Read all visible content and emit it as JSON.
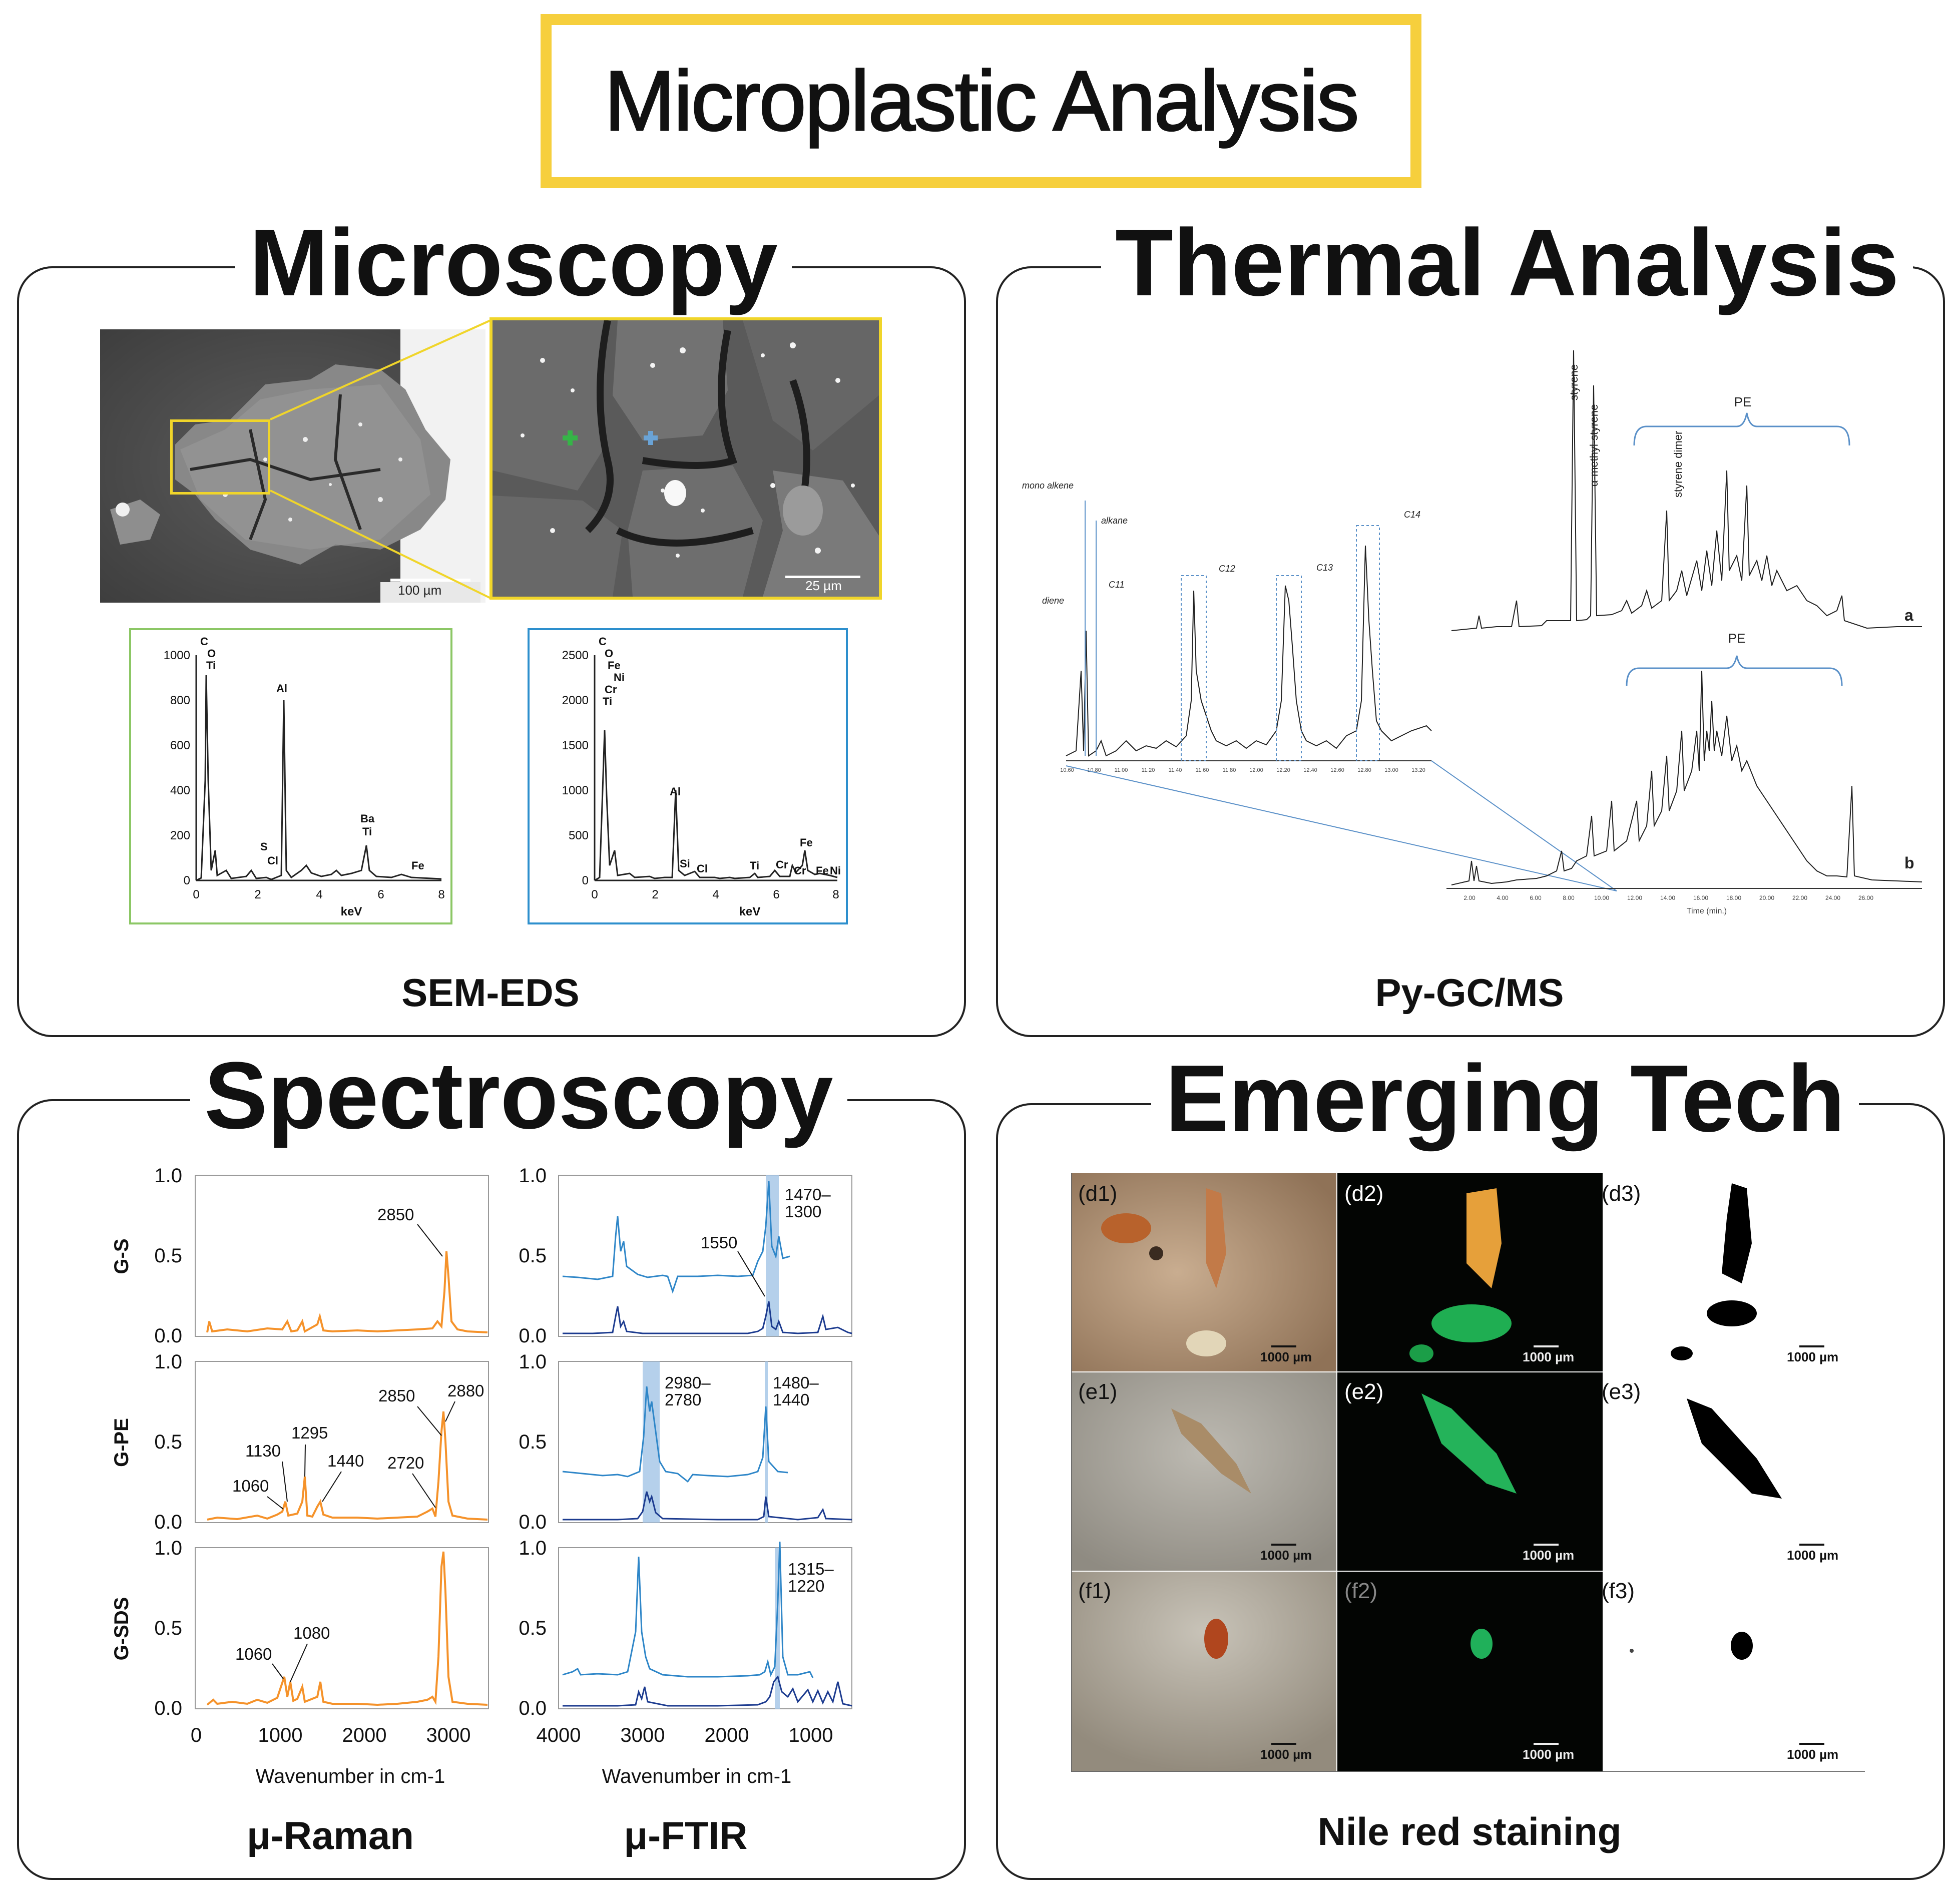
{
  "title": "Microplastic Analysis",
  "colors": {
    "accent_yellow": "#f6cf3d",
    "raman_orange": "#f5922a",
    "ftir_light": "#2e86c8",
    "ftir_dark": "#1c3b8f",
    "band": "#a8c8e8",
    "eds_green": "#8cc765",
    "eds_blue": "#2d8fcd"
  },
  "panels": {
    "microscopy": {
      "heading": "Microscopy",
      "caption": "SEM-EDS",
      "scale_left": "100 µm",
      "scale_right": "25 µm",
      "eds_left": {
        "y_ticks": [
          "0",
          "200",
          "400",
          "600",
          "800",
          "1000"
        ],
        "x_ticks": [
          "0",
          "2",
          "4",
          "6",
          "8"
        ],
        "x_label": "keV",
        "element_stack": [
          "C",
          "O",
          "Ti"
        ],
        "labels": [
          "Al",
          "S",
          "Cl",
          "Ba",
          "Ti",
          "Fe"
        ]
      },
      "eds_right": {
        "y_ticks": [
          "0",
          "500",
          "1000",
          "1500",
          "2000",
          "2500"
        ],
        "x_ticks": [
          "0",
          "2",
          "4",
          "6",
          "8"
        ],
        "x_label": "keV",
        "element_stack": [
          "C",
          "O",
          "Fe",
          "Ni",
          "Cr",
          "Ti"
        ],
        "labels": [
          "Al",
          "Si",
          "Cl",
          "Ti",
          "Cr",
          "Cr",
          "Fe",
          "Fe",
          "Ni"
        ]
      }
    },
    "thermal": {
      "heading": "Thermal Analysis",
      "caption": "Py-GC/MS",
      "zoom_labels": [
        "mono alkene",
        "alkane",
        "diene",
        "C11",
        "C12",
        "C13",
        "C14"
      ],
      "zoom_ticks": [
        "10.60",
        "10.80",
        "11.00",
        "11.20",
        "11.40",
        "11.60",
        "11.80",
        "12.00",
        "12.20",
        "12.40",
        "12.60",
        "12.80",
        "13.00",
        "13.20"
      ],
      "trace_a": {
        "label": "a",
        "peak_labels": [
          "styrene",
          "α-methyl-styrene",
          "styrene dimer"
        ],
        "group": "PE"
      },
      "trace_b": {
        "label": "b",
        "group": "PE"
      },
      "time_ticks": [
        "2.00",
        "4.00",
        "6.00",
        "8.00",
        "10.00",
        "12.00",
        "14.00",
        "16.00",
        "18.00",
        "20.00",
        "22.00",
        "24.00",
        "26.00"
      ],
      "time_label": "Time (min.)"
    },
    "spectroscopy": {
      "heading": "Spectroscopy",
      "row_labels": [
        "G-S",
        "G-PE",
        "G-SDS"
      ],
      "y_ticks": [
        "0.0",
        "0.5",
        "1.0"
      ],
      "raman_x_ticks": [
        "0",
        "1000",
        "2000",
        "3000"
      ],
      "ftir_x_ticks": [
        "4000",
        "3000",
        "2000",
        "1000"
      ],
      "x_label": "Wavenumber in cm-1",
      "raman_caption": "μ-Raman",
      "ftir_caption": "μ-FTIR",
      "raman_annotations": {
        "gs": [
          "2850"
        ],
        "gpe": [
          "2850",
          "2880",
          "1295",
          "1130",
          "1440",
          "2720",
          "1060"
        ],
        "gsds": [
          "1060",
          "1080"
        ]
      },
      "ftir_annotations": {
        "gs": [
          "1470–",
          "1300",
          "1550"
        ],
        "gpe": [
          "2980–",
          "2780",
          "1480–",
          "1440"
        ],
        "gsds": [
          "1315–",
          "1220"
        ]
      }
    },
    "emerging": {
      "heading": "Emerging Tech",
      "caption": "Nile red staining",
      "tiles": [
        {
          "id": "(d1)",
          "scale": "1000 µm"
        },
        {
          "id": "(d2)",
          "scale": "1000 µm"
        },
        {
          "id": "(d3)",
          "scale": "1000 µm"
        },
        {
          "id": "(e1)",
          "scale": "1000 µm"
        },
        {
          "id": "(e2)",
          "scale": "1000 µm"
        },
        {
          "id": "(e3)",
          "scale": "1000 µm"
        },
        {
          "id": "(f1)",
          "scale": "1000 µm"
        },
        {
          "id": "(f2)",
          "scale": "1000 µm"
        },
        {
          "id": "(f3)",
          "scale": "1000 µm"
        }
      ]
    }
  }
}
